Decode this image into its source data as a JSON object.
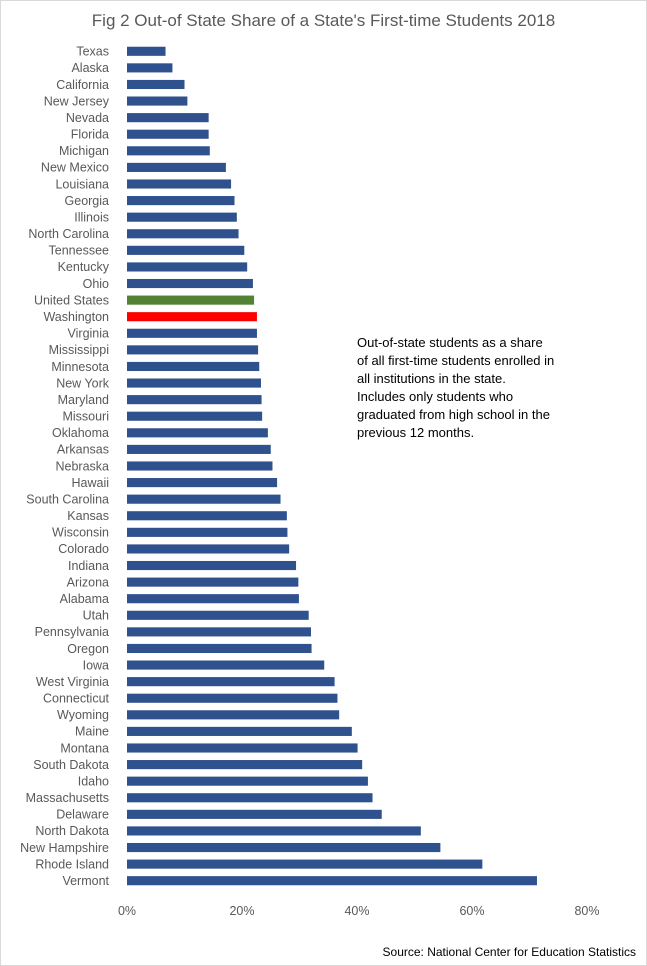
{
  "chart_data": {
    "type": "bar",
    "orientation": "horizontal",
    "title": "Fig 2 Out-of State Share of a State's First-time Students 2018",
    "xlabel": "",
    "ylabel": "",
    "xlim": [
      0,
      80
    ],
    "x_ticks": [
      "0%",
      "20%",
      "40%",
      "60%",
      "80%"
    ],
    "x_tick_values": [
      0,
      20,
      40,
      60,
      80
    ],
    "grid": false,
    "legend": "none",
    "colors": {
      "default": "#2f528f",
      "united_states": "#548235",
      "washington": "#ff0000"
    },
    "categories": [
      "Texas",
      "Alaska",
      "California",
      "New Jersey",
      "Nevada",
      "Florida",
      "Michigan",
      "New Mexico",
      "Louisiana",
      "Georgia",
      "Illinois",
      "North Carolina",
      "Tennessee",
      "Kentucky",
      "Ohio",
      "United States",
      "Washington",
      "Virginia",
      "Mississippi",
      "Minnesota",
      "New York",
      "Maryland",
      "Missouri",
      "Oklahoma",
      "Arkansas",
      "Nebraska",
      "Hawaii",
      "South Carolina",
      "Kansas",
      "Wisconsin",
      "Colorado",
      "Indiana",
      "Arizona",
      "Alabama",
      "Utah",
      "Pennsylvania",
      "Oregon",
      "Iowa",
      "West Virginia",
      "Connecticut",
      "Wyoming",
      "Maine",
      "Montana",
      "South Dakota",
      "Idaho",
      "Massachusetts",
      "Delaware",
      "North Dakota",
      "New Hampshire",
      "Rhode Island",
      "Vermont"
    ],
    "values": [
      6.7,
      7.9,
      10.0,
      10.5,
      14.2,
      14.2,
      14.4,
      17.2,
      18.1,
      18.7,
      19.1,
      19.4,
      20.4,
      20.9,
      21.9,
      22.1,
      22.6,
      22.6,
      22.8,
      23.0,
      23.3,
      23.4,
      23.5,
      24.5,
      25.0,
      25.3,
      26.1,
      26.7,
      27.8,
      27.9,
      28.2,
      29.4,
      29.8,
      29.9,
      31.6,
      32.0,
      32.1,
      34.3,
      36.1,
      36.6,
      36.9,
      39.1,
      40.1,
      40.9,
      41.9,
      42.7,
      44.3,
      51.1,
      54.5,
      61.8,
      71.3
    ]
  },
  "annotation": "Out-of-state students as a share of all first-time students enrolled in all institutions in the state. Includes only students who graduated from high school in the previous 12 months.",
  "source": "Source: National Center for Education Statistics"
}
